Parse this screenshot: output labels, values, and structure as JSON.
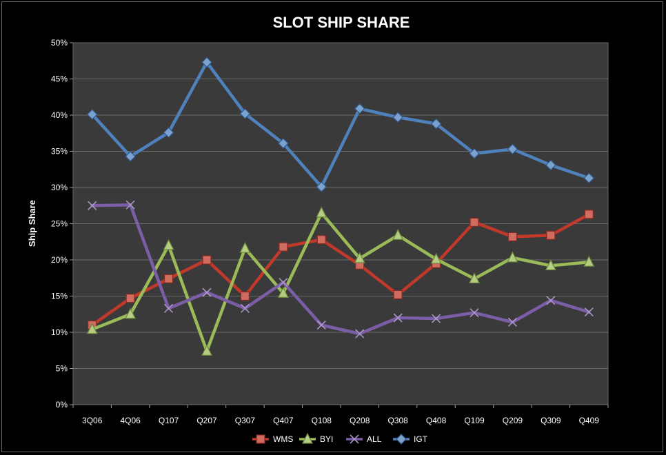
{
  "chart_data": {
    "type": "line",
    "title": "SLOT SHIP SHARE",
    "xlabel": "",
    "ylabel": "Ship  Share",
    "ylim": [
      0,
      50
    ],
    "ytick_step": 5,
    "y_format": "percent",
    "grid": true,
    "legend_position": "bottom",
    "categories": [
      "3Q06",
      "4Q06",
      "Q107",
      "Q207",
      "Q307",
      "Q407",
      "Q108",
      "Q208",
      "Q308",
      "Q408",
      "Q109",
      "Q209",
      "Q309",
      "Q409"
    ],
    "series": [
      {
        "name": "WMS",
        "color": "#c0392b",
        "marker": "square",
        "values": [
          11.0,
          14.7,
          17.4,
          20.0,
          15.0,
          21.8,
          22.8,
          19.3,
          15.2,
          19.5,
          25.2,
          23.2,
          23.4,
          26.3
        ]
      },
      {
        "name": "BYI",
        "color": "#9bbb59",
        "marker": "triangle",
        "values": [
          10.4,
          12.5,
          22.0,
          7.4,
          21.6,
          15.4,
          26.5,
          20.2,
          23.4,
          20.1,
          17.4,
          20.3,
          19.2,
          19.7
        ]
      },
      {
        "name": "ALL",
        "color": "#7b5ea7",
        "marker": "x",
        "values": [
          27.5,
          27.6,
          13.3,
          15.5,
          13.3,
          16.9,
          11.0,
          9.8,
          12.0,
          11.9,
          12.7,
          11.4,
          14.4,
          12.8
        ]
      },
      {
        "name": "IGT",
        "color": "#4f81bd",
        "marker": "diamond",
        "values": [
          40.1,
          34.3,
          37.6,
          47.3,
          40.2,
          36.1,
          30.1,
          40.9,
          39.7,
          38.8,
          34.7,
          35.3,
          33.1,
          31.3
        ]
      }
    ]
  }
}
